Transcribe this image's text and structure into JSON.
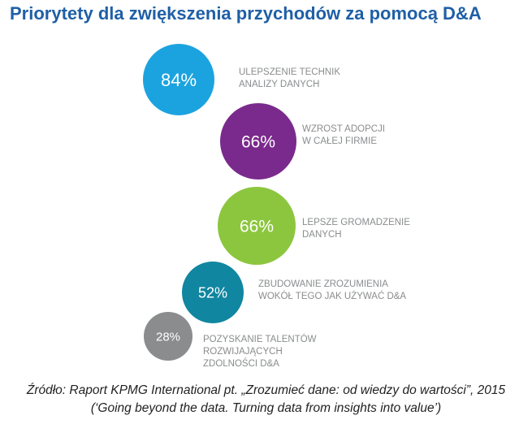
{
  "title": "Priorytety dla zwiększenia przychodów za pomocą D&A",
  "chart_data": {
    "type": "bubble",
    "title": "Priorytety dla zwiększenia przychodów za pomocą D&A",
    "value_unit": "%",
    "items": [
      {
        "value": 84,
        "label": "84%",
        "category_lines": [
          "ULEPSZENIE TECHNIK",
          "ANALIZY DANYCH"
        ],
        "color": "#1ba3e0"
      },
      {
        "value": 66,
        "label": "66%",
        "category_lines": [
          "WZROST ADOPCJI",
          "W CAŁEJ FIRMIE"
        ],
        "color": "#7a2a8c"
      },
      {
        "value": 66,
        "label": "66%",
        "category_lines": [
          "LEPSZE GROMADZENIE",
          "DANYCH"
        ],
        "color": "#8cc63e"
      },
      {
        "value": 52,
        "label": "52%",
        "category_lines": [
          "ZBUDOWANIE ZROZUMIENIA",
          "WOKÓŁ TEGO JAK UŻYWAĆ D&A"
        ],
        "color": "#1186a0"
      },
      {
        "value": 28,
        "label": "28%",
        "category_lines": [
          "POZYSKANIE TALENTÓW",
          "ROZWIJAJĄCYCH",
          "ZDOLNOŚCI D&A"
        ],
        "color": "#8a8c8e"
      }
    ]
  },
  "source": {
    "line1": "Źródło: Raport KPMG International pt. „Zrozumieć dane: od wiedzy do wartości”, 2015",
    "line2": "(‘Going beyond the data. Turning data from insights into value’)"
  }
}
